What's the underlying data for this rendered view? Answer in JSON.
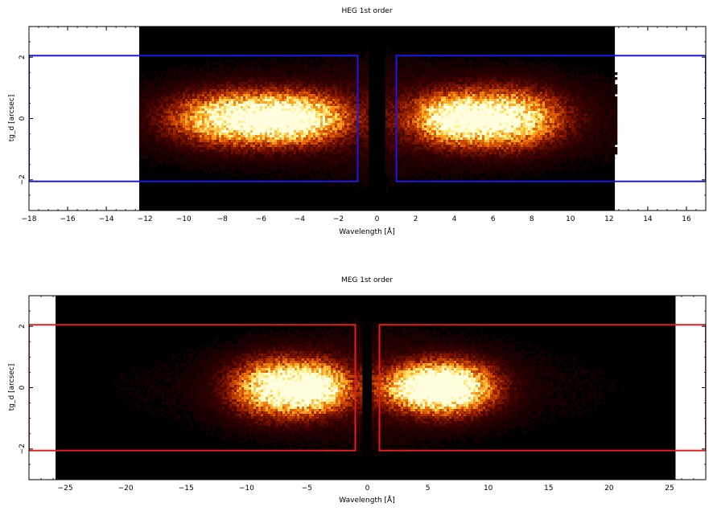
{
  "chart_data": [
    {
      "type": "heatmap",
      "title": "HEG 1st order",
      "xlabel": "Wavelength [Å]",
      "ylabel": "tg_d [arcsec]",
      "xlim": [
        -18,
        17
      ],
      "ylim": [
        -3,
        3
      ],
      "x_ticks": [
        -18,
        -16,
        -14,
        -12,
        -10,
        -8,
        -6,
        -4,
        -2,
        0,
        2,
        4,
        6,
        8,
        10,
        12,
        14,
        16
      ],
      "x_tick_labels": [
        "−18",
        "−16",
        "−14",
        "−12",
        "−10",
        "−8",
        "−6",
        "−4",
        "−2",
        "0",
        "2",
        "4",
        "6",
        "8",
        "10",
        "12",
        "14",
        "16"
      ],
      "y_ticks": [
        -2,
        0,
        2
      ],
      "y_tick_labels": [
        "−2",
        "0",
        "2"
      ],
      "data_extent": [
        -12.3,
        12.3
      ],
      "colormap": [
        "#000000",
        "#3a0000",
        "#8a1a00",
        "#d85400",
        "#ffa020",
        "#ffe870",
        "#ffffe0"
      ],
      "emission_blobs": [
        {
          "x": -7.2,
          "y": 0,
          "sx": 1.6,
          "sy": 0.55,
          "amp": 1.0
        },
        {
          "x": -4.0,
          "y": 0,
          "sx": 1.2,
          "sy": 0.5,
          "amp": 0.85
        },
        {
          "x": 3.8,
          "y": 0,
          "sx": 1.0,
          "sy": 0.5,
          "amp": 0.8
        },
        {
          "x": 6.6,
          "y": 0,
          "sx": 1.4,
          "sy": 0.6,
          "amp": 1.0
        }
      ],
      "regions": [
        {
          "x": [
            -18,
            -1
          ],
          "y": [
            -2.05,
            2.05
          ]
        },
        {
          "x": [
            1,
            17
          ],
          "y": [
            -2.05,
            2.05
          ]
        }
      ],
      "region_color": "#1a1ae6"
    },
    {
      "type": "heatmap",
      "title": "MEG 1st order",
      "xlabel": "Wavelength [Å]",
      "ylabel": "tg_d [arcsec]",
      "xlim": [
        -28,
        28
      ],
      "ylim": [
        -3,
        3
      ],
      "x_ticks": [
        -25,
        -20,
        -15,
        -10,
        -5,
        0,
        5,
        10,
        15,
        20,
        25
      ],
      "x_tick_labels": [
        "−25",
        "−20",
        "−15",
        "−10",
        "−5",
        "0",
        "5",
        "10",
        "15",
        "20",
        "25"
      ],
      "y_ticks": [
        -2,
        0,
        2
      ],
      "y_tick_labels": [
        "−2",
        "0",
        "2"
      ],
      "data_extent": [
        -25.8,
        25.5
      ],
      "colormap": [
        "#000000",
        "#3a0000",
        "#8a1a00",
        "#d85400",
        "#ffa020",
        "#ffe870",
        "#ffffe0"
      ],
      "emission_blobs": [
        {
          "x": -7.5,
          "y": 0,
          "sx": 1.8,
          "sy": 0.6,
          "amp": 1.0
        },
        {
          "x": -4.0,
          "y": 0,
          "sx": 1.3,
          "sy": 0.5,
          "amp": 0.85
        },
        {
          "x": 4.5,
          "y": 0,
          "sx": 1.6,
          "sy": 0.45,
          "amp": 0.8
        },
        {
          "x": 7.0,
          "y": 0,
          "sx": 1.8,
          "sy": 0.55,
          "amp": 1.0
        }
      ],
      "regions": [
        {
          "x": [
            -28,
            -1
          ],
          "y": [
            -2.05,
            2.05
          ]
        },
        {
          "x": [
            1,
            28
          ],
          "y": [
            -2.05,
            2.05
          ]
        }
      ],
      "region_color": "#e02020"
    }
  ]
}
